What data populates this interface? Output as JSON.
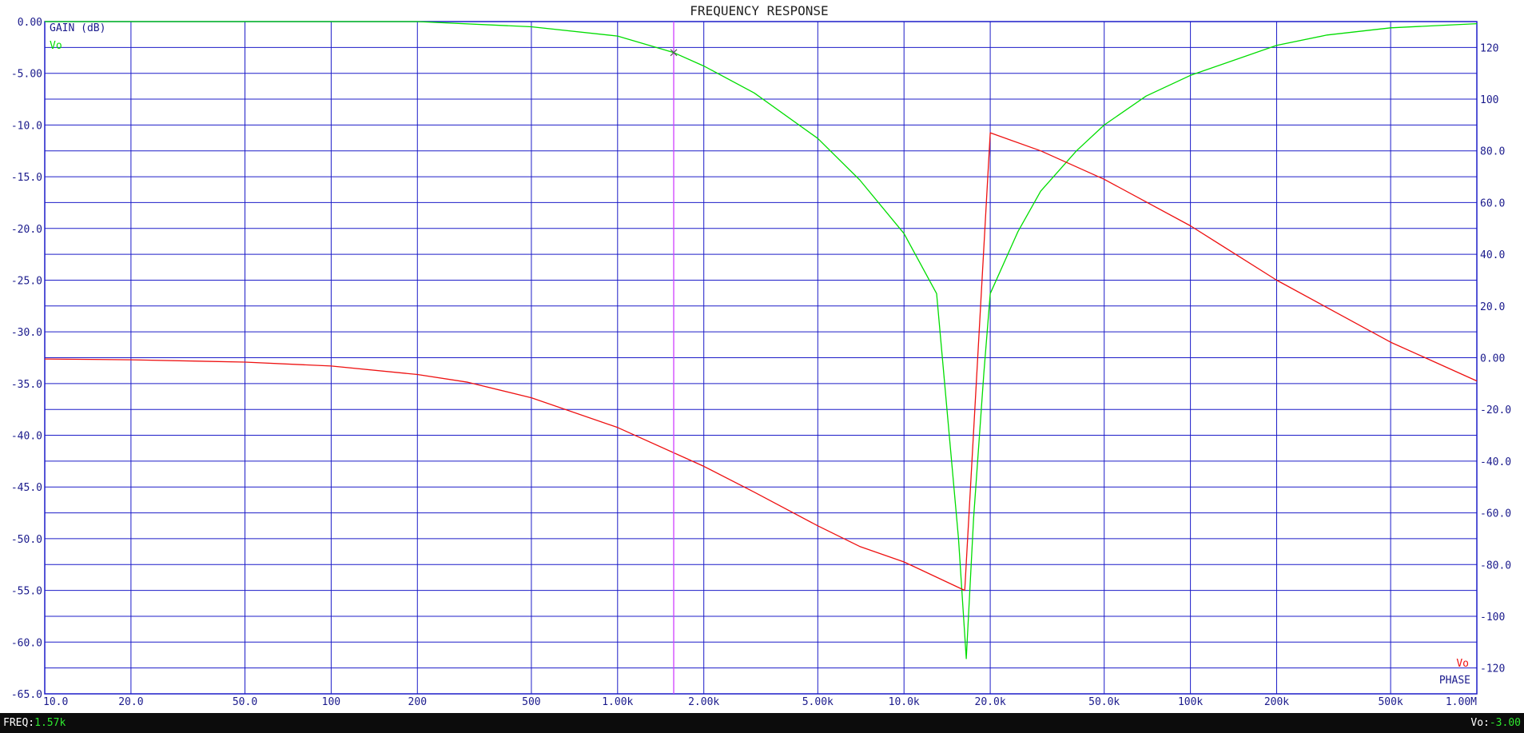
{
  "chart_data": {
    "type": "line",
    "title": "FREQUENCY RESPONSE",
    "x_scale": "log",
    "xlim": [
      10,
      1000000
    ],
    "x_ticks": [
      10,
      20,
      50,
      100,
      200,
      500,
      1000,
      2000,
      5000,
      10000,
      20000,
      50000,
      100000,
      200000,
      500000,
      1000000
    ],
    "x_tick_labels": [
      "10.0",
      "20.0",
      "50.0",
      "100",
      "200",
      "500",
      "1.00k",
      "2.00k",
      "5.00k",
      "10.0k",
      "20.0k",
      "50.0k",
      "100k",
      "200k",
      "500k",
      "1.00M"
    ],
    "left_axis": {
      "label": "GAIN (dB)",
      "ylim": [
        -65,
        0
      ],
      "ticks": [
        0,
        -5,
        -10,
        -15,
        -20,
        -25,
        -30,
        -35,
        -40,
        -45,
        -50,
        -55,
        -60,
        -65
      ],
      "tick_labels": [
        "0.00",
        "-5.00",
        "-10.0",
        "-15.0",
        "-20.0",
        "-25.0",
        "-30.0",
        "-35.0",
        "-40.0",
        "-45.0",
        "-50.0",
        "-55.0",
        "-60.0",
        "-65.0"
      ]
    },
    "right_axis": {
      "label": "PHASE",
      "ylim": [
        -130,
        130
      ],
      "ticks": [
        120,
        100,
        80,
        60,
        40,
        20,
        0,
        -20,
        -40,
        -60,
        -80,
        -100,
        -120
      ],
      "tick_labels": [
        "120",
        "100",
        "80.0",
        "60.0",
        "40.0",
        "20.0",
        "0.00",
        "-20.0",
        "-40.0",
        "-60.0",
        "-80.0",
        "-100",
        "-120"
      ]
    },
    "grid": true,
    "series": [
      {
        "name": "Vo",
        "axis": "left",
        "color": "#00dd00",
        "points": [
          [
            10,
            0
          ],
          [
            100,
            0
          ],
          [
            200,
            0
          ],
          [
            500,
            -0.5
          ],
          [
            1000,
            -1.4
          ],
          [
            1570,
            -3.0
          ],
          [
            2000,
            -4.3
          ],
          [
            3000,
            -6.9
          ],
          [
            5000,
            -11.3
          ],
          [
            7000,
            -15.3
          ],
          [
            10000,
            -20.5
          ],
          [
            13000,
            -26.3
          ],
          [
            15500,
            -50
          ],
          [
            16500,
            -61.6
          ],
          [
            17500,
            -48
          ],
          [
            19000,
            -34
          ],
          [
            20000,
            -26.3
          ],
          [
            25000,
            -20.3
          ],
          [
            30000,
            -16.4
          ],
          [
            40000,
            -12.5
          ],
          [
            50000,
            -10
          ],
          [
            70000,
            -7.2
          ],
          [
            100000,
            -5.2
          ],
          [
            200000,
            -2.3
          ],
          [
            300000,
            -1.3
          ],
          [
            500000,
            -0.6
          ],
          [
            1000000,
            -0.2
          ]
        ]
      },
      {
        "name": "Vo",
        "axis": "right",
        "color": "#ee1111",
        "points": [
          [
            10,
            -0.5
          ],
          [
            20,
            -0.8
          ],
          [
            50,
            -1.7
          ],
          [
            100,
            -3.2
          ],
          [
            200,
            -6.5
          ],
          [
            300,
            -9.5
          ],
          [
            500,
            -15.5
          ],
          [
            1000,
            -27
          ],
          [
            2000,
            -42
          ],
          [
            3000,
            -52
          ],
          [
            5000,
            -65
          ],
          [
            7000,
            -73
          ],
          [
            10000,
            -79
          ],
          [
            16300,
            -90
          ],
          [
            20000,
            87
          ],
          [
            30000,
            80
          ],
          [
            50000,
            69
          ],
          [
            100000,
            51
          ],
          [
            200000,
            30
          ],
          [
            500000,
            6
          ],
          [
            1000000,
            -9
          ]
        ]
      }
    ],
    "cursor": {
      "x": 1570,
      "y": -3.0,
      "color": "#d040ff"
    }
  },
  "legend": {
    "gain_axis_label": "GAIN (dB)",
    "gain_series_label": "Vo",
    "phase_series_label": "Vo",
    "phase_axis_label": "PHASE"
  },
  "status": {
    "freq_label": "FREQ:",
    "freq_value": "1.57k",
    "vo_label": "Vo:",
    "vo_value": "-3.00"
  },
  "colors": {
    "grid": "#1c1cc8",
    "gain_trace": "#00dd00",
    "phase_trace": "#ee1111",
    "cursor": "#d040ff",
    "axis_text": "#1a1a8c"
  }
}
